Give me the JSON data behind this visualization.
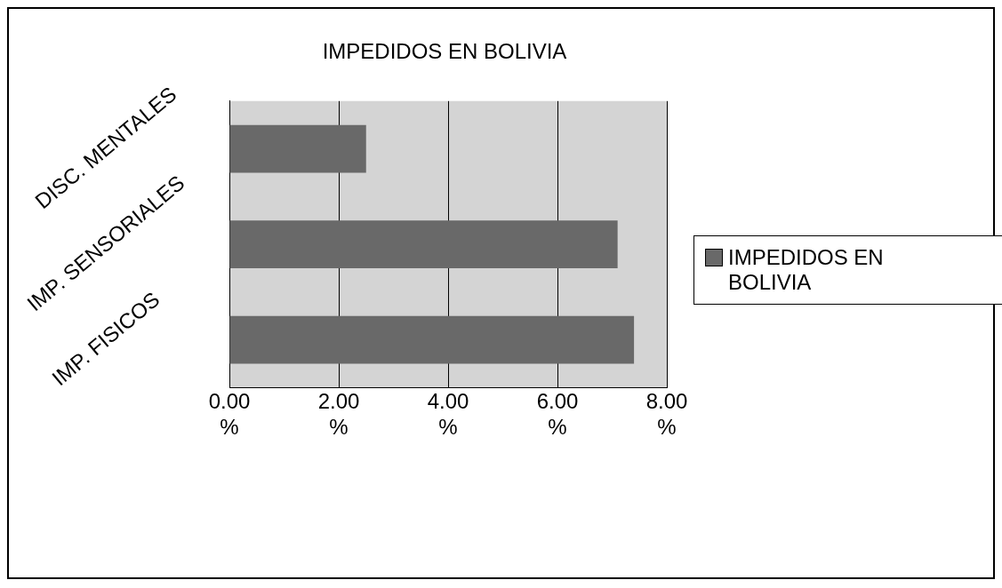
{
  "chart_data": {
    "type": "bar",
    "orientation": "horizontal",
    "title": "IMPEDIDOS EN BOLIVIA",
    "categories": [
      "DISC. MENTALES",
      "IMP. SENSORIALES",
      "IMP. FISICOS"
    ],
    "series": [
      {
        "name": "IMPEDIDOS EN BOLIVIA",
        "color": "#696969",
        "values": [
          2.5,
          7.1,
          7.4
        ]
      }
    ],
    "xlim": [
      0,
      8
    ],
    "xticks": [
      {
        "value": 0,
        "label": "0.00 %"
      },
      {
        "value": 2,
        "label": "2.00 %"
      },
      {
        "value": 4,
        "label": "4.00 %"
      },
      {
        "value": 6,
        "label": "6.00 %"
      },
      {
        "value": 8,
        "label": "8.00 %"
      }
    ],
    "grid": "x",
    "legend": "right"
  }
}
